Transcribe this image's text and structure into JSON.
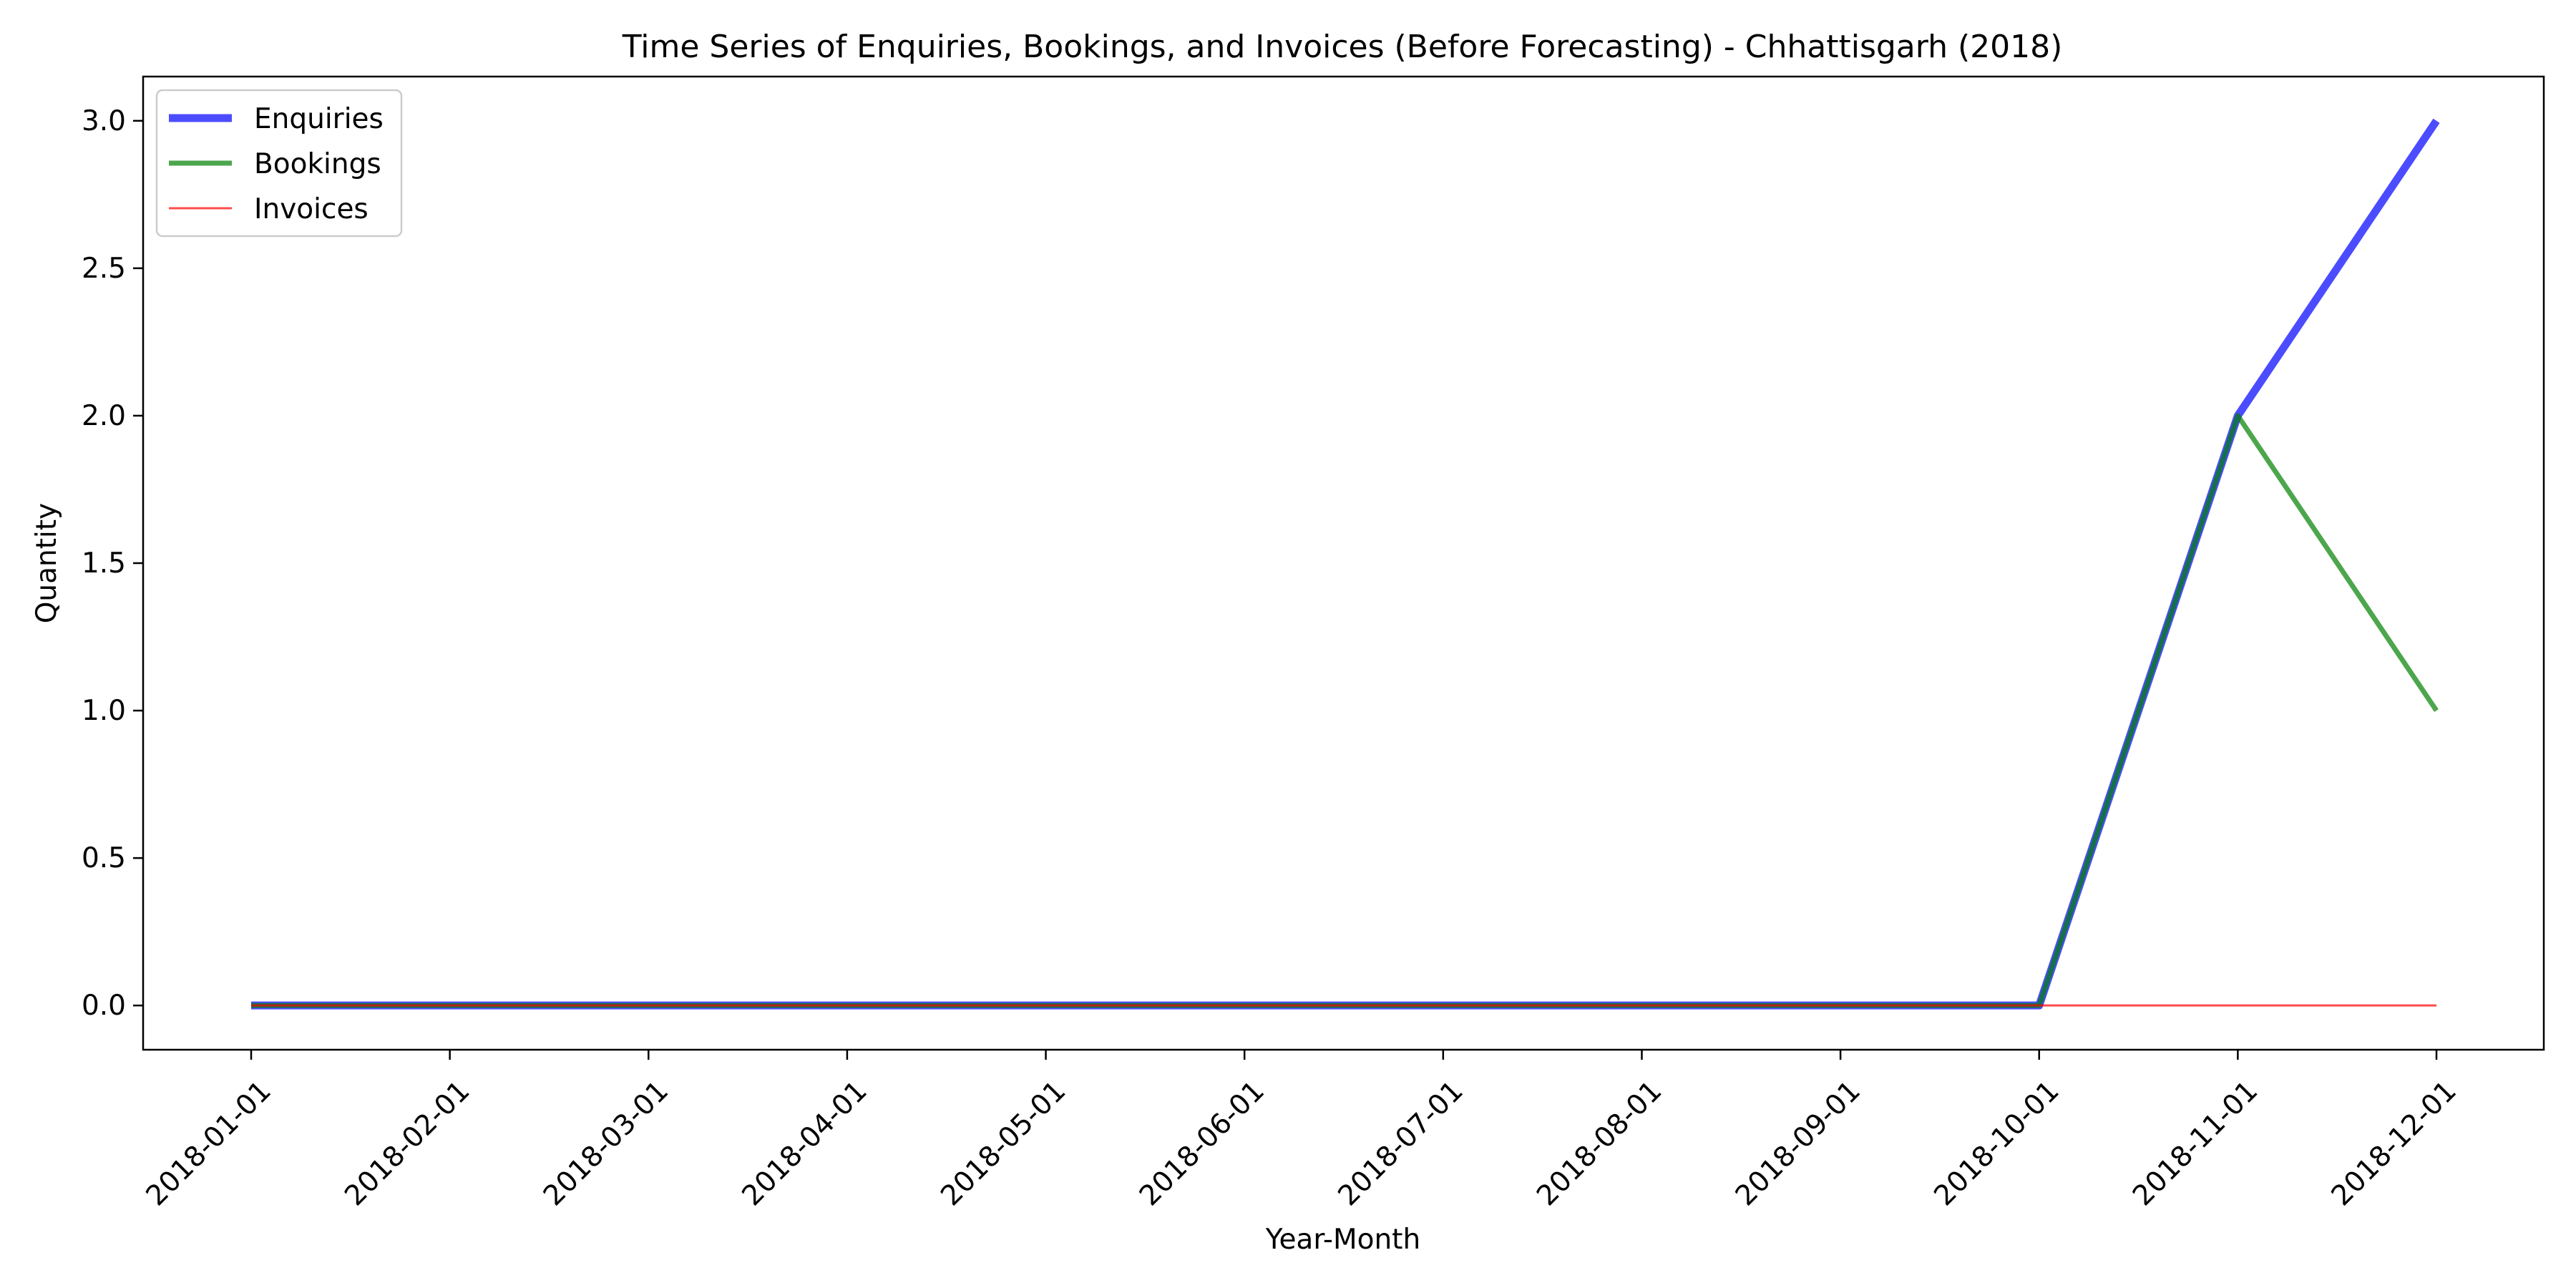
{
  "chart_data": {
    "type": "line",
    "title": "Time Series of Enquiries, Bookings, and Invoices (Before Forecasting) - Chhattisgarh (2018)",
    "xlabel": "Year-Month",
    "ylabel": "Quantity",
    "categories": [
      "2018-01-01",
      "2018-02-01",
      "2018-03-01",
      "2018-04-01",
      "2018-05-01",
      "2018-06-01",
      "2018-07-01",
      "2018-08-01",
      "2018-09-01",
      "2018-10-01",
      "2018-11-01",
      "2018-12-01"
    ],
    "ylim": [
      -0.15,
      3.15
    ],
    "yticks": [
      "0.0",
      "0.5",
      "1.0",
      "1.5",
      "2.0",
      "2.5",
      "3.0"
    ],
    "ytick_values": [
      0,
      0.5,
      1,
      1.5,
      2,
      2.5,
      3
    ],
    "grid": false,
    "legend_position": "top-left",
    "series": [
      {
        "name": "Enquiries",
        "values": [
          0,
          0,
          0,
          0,
          0,
          0,
          0,
          0,
          0,
          0,
          2,
          3
        ],
        "color": "#0000ff",
        "opacity": 0.7,
        "line_width": "thick"
      },
      {
        "name": "Bookings",
        "values": [
          0,
          0,
          0,
          0,
          0,
          0,
          0,
          0,
          0,
          0,
          2,
          1
        ],
        "color": "#008000",
        "opacity": 0.7,
        "line_width": "medium"
      },
      {
        "name": "Invoices",
        "values": [
          0,
          0,
          0,
          0,
          0,
          0,
          0,
          0,
          0,
          0,
          0,
          0
        ],
        "color": "#ff0000",
        "opacity": 0.7,
        "line_width": "thin"
      }
    ]
  }
}
